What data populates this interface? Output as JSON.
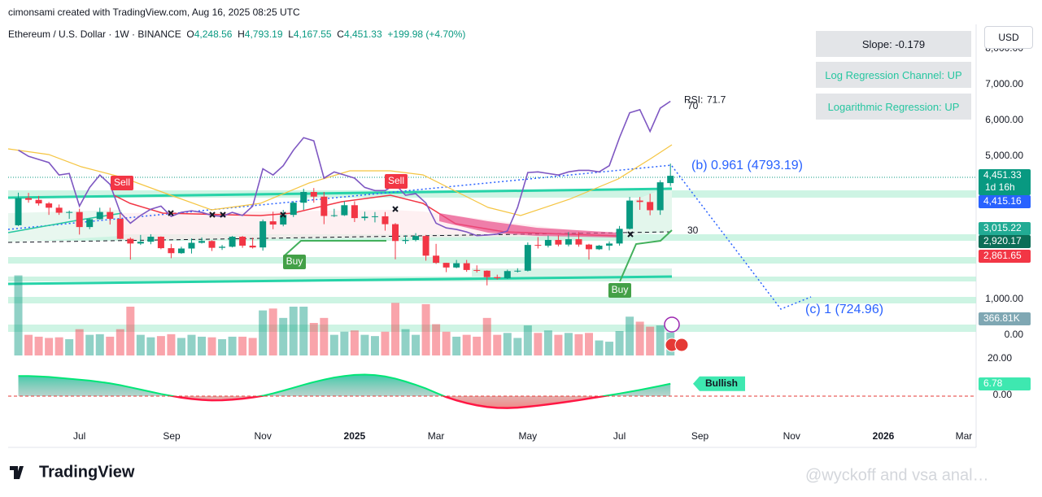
{
  "header": {
    "credit": "cimonsami created with TradingView.com, Aug 16, 2025 08:25 UTC",
    "symbol": "Ethereum / U.S. Dollar · 1W · BINANCE",
    "o_label": "O",
    "o": "4,248.56",
    "h_label": "H",
    "h": "4,793.19",
    "l_label": "L",
    "l": "4,167.55",
    "c_label": "C",
    "c": "4,451.33",
    "change": "+199.98 (+4.70%)"
  },
  "info_boxes": [
    "Slope: -0.179",
    "Log Regression Channel: UP",
    "Logarithmic Regression: UP"
  ],
  "chart_data": {
    "type": "candlestick",
    "currency": "USD",
    "x": [
      0,
      1,
      2,
      3,
      4,
      5,
      6,
      7,
      8,
      9,
      10,
      11,
      12,
      13,
      14,
      15,
      16,
      17,
      18,
      19,
      20,
      21,
      22,
      23,
      24,
      25,
      26,
      27,
      28,
      29,
      30,
      31,
      32,
      33,
      34,
      35,
      36,
      37,
      38,
      39,
      40,
      41,
      42,
      43,
      44,
      45,
      46,
      47,
      48,
      49,
      50,
      51,
      52,
      53,
      54,
      55,
      56,
      57,
      58,
      59,
      60,
      61,
      62,
      63,
      64
    ],
    "open": [
      3070,
      3830,
      3780,
      3680,
      3560,
      3420,
      3440,
      3020,
      3240,
      3440,
      3250,
      2690,
      2560,
      2610,
      2750,
      2430,
      2290,
      2420,
      2580,
      2630,
      2440,
      2470,
      2750,
      2500,
      2450,
      3180,
      3090,
      3360,
      3700,
      4000,
      3870,
      3330,
      3350,
      3630,
      3270,
      3310,
      3320,
      3100,
      2630,
      2660,
      2770,
      2220,
      2020,
      1890,
      2010,
      1820,
      1800,
      1620,
      1590,
      1790,
      1800,
      2520,
      2500,
      2660,
      2530,
      2680,
      2530,
      2400,
      2500,
      2560,
      2970,
      3760,
      3720,
      3490,
      4248.56
    ],
    "high": [
      3980,
      3975,
      3890,
      3720,
      3650,
      3480,
      3530,
      3260,
      3560,
      3560,
      3400,
      2730,
      2800,
      2820,
      2760,
      2550,
      2470,
      2700,
      2730,
      2650,
      2520,
      2770,
      2770,
      2720,
      3230,
      3450,
      3500,
      3740,
      4090,
      4110,
      4000,
      3530,
      3740,
      3740,
      3450,
      3440,
      3440,
      3130,
      2790,
      2850,
      2800,
      2550,
      2020,
      2100,
      2100,
      1950,
      1810,
      1690,
      1830,
      1870,
      2590,
      2740,
      2780,
      2790,
      2880,
      2880,
      2550,
      2520,
      2620,
      3050,
      3860,
      3860,
      3950,
      4330,
      4793.19
    ],
    "low": [
      3050,
      3700,
      3620,
      3360,
      3360,
      3250,
      2810,
      2960,
      3230,
      3090,
      2680,
      2110,
      2520,
      2540,
      2400,
      2150,
      2270,
      2280,
      2560,
      2350,
      2380,
      2450,
      2440,
      2420,
      2360,
      2960,
      3040,
      3300,
      3500,
      3700,
      3100,
      3300,
      3330,
      3160,
      3200,
      3150,
      2920,
      2120,
      2550,
      2620,
      2080,
      1990,
      1760,
      1870,
      1770,
      1750,
      1390,
      1550,
      1570,
      1750,
      1780,
      2420,
      2450,
      2480,
      2480,
      2470,
      2110,
      2380,
      2370,
      2500,
      2950,
      3500,
      3350,
      3360,
      4167.55
    ],
    "close": [
      3830,
      3780,
      3680,
      3560,
      3420,
      3440,
      3020,
      3240,
      3440,
      3250,
      2690,
      2560,
      2610,
      2750,
      2430,
      2290,
      2420,
      2580,
      2630,
      2440,
      2470,
      2750,
      2500,
      2450,
      3180,
      3090,
      3360,
      3700,
      4000,
      3870,
      3330,
      3350,
      3630,
      3270,
      3310,
      3320,
      3100,
      2630,
      2660,
      2770,
      2220,
      2020,
      1890,
      2010,
      1820,
      1800,
      1620,
      1590,
      1790,
      1800,
      2520,
      2500,
      2660,
      2530,
      2680,
      2530,
      2400,
      2500,
      2560,
      2970,
      3760,
      3720,
      3490,
      4270,
      4451.33
    ],
    "colors": {
      "up": "#089981",
      "down": "#f23645"
    },
    "xlim": [
      -1,
      94
    ],
    "xticks": [
      {
        "value": 6,
        "label": "Jul"
      },
      {
        "value": 15.05,
        "label": "Sep"
      },
      {
        "value": 24,
        "label": "Nov"
      },
      {
        "value": 33,
        "label": "2025"
      },
      {
        "value": 41,
        "label": "Mar"
      },
      {
        "value": 50,
        "label": "May"
      },
      {
        "value": 59,
        "label": "Jul"
      },
      {
        "value": 66.9,
        "label": "Sep"
      },
      {
        "value": 75.9,
        "label": "Nov"
      },
      {
        "value": 84.9,
        "label": "2026"
      },
      {
        "value": 92.8,
        "label": "Mar"
      }
    ],
    "ylim": [
      0,
      8682
    ],
    "yticks": [
      {
        "value": 0,
        "label": "0.00"
      },
      {
        "value": 1000,
        "label": "1,000.00"
      },
      {
        "value": 5000,
        "label": "5,000.00"
      },
      {
        "value": 6000,
        "label": "6,000.00"
      },
      {
        "value": 7000,
        "label": "7,000.00"
      },
      {
        "value": 8000,
        "label": "8,000.00"
      }
    ],
    "grid": false,
    "volume": {
      "values": [
        1280,
        330,
        300,
        280,
        290,
        260,
        420,
        330,
        340,
        300,
        420,
        780,
        330,
        290,
        310,
        340,
        280,
        330,
        300,
        290,
        260,
        300,
        300,
        280,
        720,
        750,
        600,
        780,
        780,
        520,
        600,
        330,
        380,
        400,
        330,
        310,
        380,
        840,
        420,
        330,
        820,
        500,
        380,
        300,
        330,
        300,
        600,
        330,
        360,
        280,
        480,
        360,
        400,
        330,
        360,
        340,
        360,
        240,
        220,
        390,
        620,
        540,
        460,
        480,
        366.81
      ],
      "value_labels": [
        null,
        null,
        null,
        null,
        null,
        null,
        null,
        null,
        null,
        null,
        null,
        null,
        null,
        null,
        null,
        null,
        null,
        null,
        null,
        null,
        null,
        null,
        null,
        null,
        null,
        null,
        null,
        null,
        null,
        null,
        null,
        null,
        null,
        null,
        null,
        null,
        null,
        null,
        null,
        null,
        null,
        null,
        null,
        null,
        null,
        null,
        null,
        null,
        null,
        null,
        null,
        null,
        null,
        null,
        null,
        null,
        null,
        null,
        null,
        null,
        null,
        null,
        null,
        null,
        "366.81K"
      ],
      "ylim": [
        0,
        1300
      ]
    },
    "rsi": {
      "name": "RSI:",
      "color": "#7e57c2",
      "values": [
        56,
        54,
        53,
        52,
        48,
        48.5,
        38,
        44,
        48,
        45,
        36,
        32.5,
        35,
        37,
        38,
        34.7,
        36,
        36.5,
        36,
        35,
        34.7,
        36,
        35,
        38,
        50,
        48,
        51,
        56,
        60,
        59,
        47,
        49,
        48,
        47,
        44,
        43,
        43,
        45,
        41.5,
        42,
        39,
        32.5,
        31,
        30.5,
        29.7,
        28.5,
        28.7,
        29,
        30,
        37.6,
        48.8,
        49,
        48.5,
        48,
        49,
        49.5,
        49.5,
        49,
        51,
        60,
        68,
        69,
        62,
        69.5,
        71.7
      ],
      "levels": [
        30,
        70
      ]
    },
    "oscillator": {
      "values": [
        11,
        11,
        10.8,
        10.5,
        10,
        9.5,
        9,
        8.5,
        7.8,
        7,
        6,
        4.8,
        3.6,
        2.4,
        1.2,
        0.2,
        -0.8,
        -1.5,
        -2,
        -2.3,
        -2.2,
        -1.9,
        -1.4,
        -0.7,
        0.2,
        1.5,
        3,
        4.6,
        6.2,
        7.7,
        9,
        10.2,
        11,
        11.6,
        11.8,
        11.5,
        10.8,
        9.6,
        8,
        6.2,
        4.2,
        1.8,
        -0.5,
        -2.3,
        -3.8,
        -5,
        -5.9,
        -6.4,
        -6.5,
        -6.3,
        -5.8,
        -5.2,
        -4.5,
        -3.8,
        -3,
        -2.2,
        -1.3,
        -0.4,
        0.5,
        1.4,
        2.4,
        3.4,
        4.5,
        5.6,
        6.78
      ],
      "ylim": [
        -16.9,
        20.9
      ],
      "yticks": [
        {
          "value": 0,
          "label": "0.00"
        },
        {
          "value": 20,
          "label": "20.00"
        }
      ],
      "signal": "Bullish"
    },
    "axis_labels": [
      {
        "label": "4,451.33",
        "sub": "1d 16h",
        "color": "#089981"
      },
      {
        "label": "4,415.16",
        "color": "#2962ff"
      },
      {
        "label": "3,015.22",
        "color": "#22ab94"
      },
      {
        "label": "2,920.17",
        "color": "#0c6e57"
      },
      {
        "label": "2,861.65",
        "color": "#f23645"
      }
    ],
    "annotations": {
      "wave_b": "(b) 0.961 (4793.19)",
      "wave_c": "(c) 1 (724.96)",
      "sell": [
        "Sell",
        "Sell"
      ],
      "buy": [
        "Buy",
        "Buy"
      ]
    }
  },
  "footer": {
    "logo": "TradingView",
    "watermark": "@wyckoff and vsa anal…"
  }
}
